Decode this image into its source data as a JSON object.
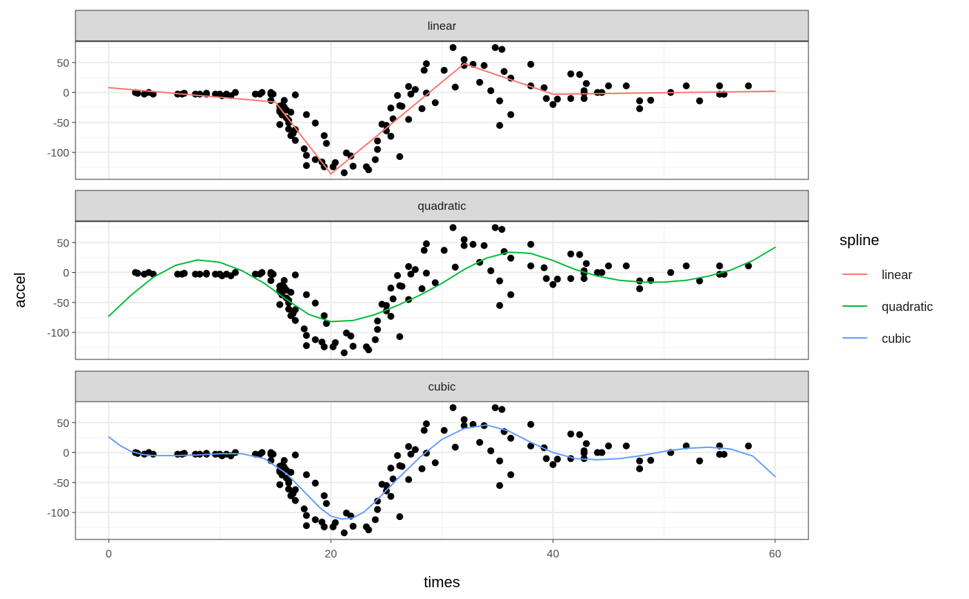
{
  "chart_data": {
    "type": "scatter",
    "xlabel": "times",
    "ylabel": "accel",
    "xlim": [
      -3,
      63
    ],
    "ylim": [
      -145,
      85
    ],
    "x_ticks": [
      0,
      20,
      40,
      60
    ],
    "y_ticks": [
      50,
      0,
      -50,
      -100
    ],
    "grid": true,
    "legend": {
      "title": "spline",
      "placement": "right",
      "entries": [
        {
          "label": "linear",
          "color": "#F8766D"
        },
        {
          "label": "quadratic",
          "color": "#00BA38"
        },
        {
          "label": "cubic",
          "color": "#619CFF"
        }
      ]
    },
    "panels": [
      {
        "strip": "linear",
        "color": "#F8766D",
        "fit": [
          [
            0,
            8
          ],
          [
            15,
            -16
          ],
          [
            20,
            -136
          ],
          [
            32,
            48
          ],
          [
            40,
            -3
          ],
          [
            60,
            2
          ]
        ]
      },
      {
        "strip": "quadratic",
        "color": "#00BA38",
        "fit": [
          [
            0,
            -73
          ],
          [
            2,
            -38
          ],
          [
            4,
            -8
          ],
          [
            6,
            12
          ],
          [
            8,
            21
          ],
          [
            10,
            17
          ],
          [
            12,
            3
          ],
          [
            14,
            -18
          ],
          [
            16,
            -45
          ],
          [
            18,
            -70
          ],
          [
            20,
            -82
          ],
          [
            22,
            -80
          ],
          [
            24,
            -70
          ],
          [
            26,
            -55
          ],
          [
            28,
            -38
          ],
          [
            30,
            -18
          ],
          [
            32,
            5
          ],
          [
            34,
            24
          ],
          [
            36,
            34
          ],
          [
            38,
            32
          ],
          [
            40,
            20
          ],
          [
            42,
            5
          ],
          [
            44,
            -6
          ],
          [
            46,
            -13
          ],
          [
            48,
            -16
          ],
          [
            50,
            -16
          ],
          [
            52,
            -13
          ],
          [
            54,
            -6
          ],
          [
            56,
            4
          ],
          [
            58,
            20
          ],
          [
            60,
            42
          ]
        ]
      },
      {
        "strip": "cubic",
        "color": "#619CFF",
        "fit": [
          [
            0,
            26
          ],
          [
            1,
            12
          ],
          [
            2,
            2
          ],
          [
            3,
            -3
          ],
          [
            4,
            -5
          ],
          [
            6,
            -5
          ],
          [
            8,
            -4
          ],
          [
            10,
            -2
          ],
          [
            12,
            -2
          ],
          [
            14,
            -10
          ],
          [
            16,
            -35
          ],
          [
            18,
            -73
          ],
          [
            19,
            -92
          ],
          [
            20,
            -106
          ],
          [
            21,
            -111
          ],
          [
            22,
            -109
          ],
          [
            23,
            -99
          ],
          [
            24,
            -82
          ],
          [
            26,
            -44
          ],
          [
            28,
            -8
          ],
          [
            30,
            22
          ],
          [
            32,
            40
          ],
          [
            34,
            46
          ],
          [
            36,
            36
          ],
          [
            38,
            17
          ],
          [
            40,
            0
          ],
          [
            42,
            -10
          ],
          [
            44,
            -12
          ],
          [
            46,
            -10
          ],
          [
            48,
            -5
          ],
          [
            50,
            2
          ],
          [
            52,
            7
          ],
          [
            54,
            9
          ],
          [
            56,
            6
          ],
          [
            58,
            -6
          ],
          [
            60,
            -40
          ]
        ]
      }
    ],
    "points": [
      [
        2.4,
        0
      ],
      [
        2.6,
        -1.3
      ],
      [
        3.2,
        -2.7
      ],
      [
        3.6,
        0
      ],
      [
        4,
        -2.7
      ],
      [
        6.2,
        -2.7
      ],
      [
        6.6,
        -2.7
      ],
      [
        6.8,
        -1.3
      ],
      [
        7.8,
        -2.7
      ],
      [
        8.2,
        -2.7
      ],
      [
        8.8,
        -1.3
      ],
      [
        8.8,
        -2.7
      ],
      [
        9.6,
        -2.7
      ],
      [
        10,
        -2.7
      ],
      [
        10.2,
        -5.4
      ],
      [
        10.6,
        -2.7
      ],
      [
        11,
        -5.4
      ],
      [
        11.4,
        0
      ],
      [
        13.2,
        -2.7
      ],
      [
        13.6,
        -2.7
      ],
      [
        13.8,
        0
      ],
      [
        14.6,
        -13.3
      ],
      [
        14.6,
        -2.7
      ],
      [
        14.6,
        0
      ],
      [
        14.6,
        -13.3
      ],
      [
        14.8,
        -2.7
      ],
      [
        15.4,
        -22.8
      ],
      [
        15.4,
        -29.4
      ],
      [
        15.4,
        -32.1
      ],
      [
        15.4,
        -53.5
      ],
      [
        15.6,
        -21.5
      ],
      [
        15.6,
        -37.5
      ],
      [
        15.8,
        -13.3
      ],
      [
        15.8,
        -24.2
      ],
      [
        16,
        -29.4
      ],
      [
        16,
        -42.5
      ],
      [
        16.2,
        -50.8
      ],
      [
        16.2,
        -61
      ],
      [
        16.2,
        -46.5
      ],
      [
        16.4,
        -72
      ],
      [
        16.4,
        -33
      ],
      [
        16.6,
        -68.5
      ],
      [
        16.8,
        -4
      ],
      [
        16.8,
        -80
      ],
      [
        16.8,
        -62
      ],
      [
        17.6,
        -94
      ],
      [
        17.8,
        -37
      ],
      [
        17.8,
        -105
      ],
      [
        17.8,
        -122
      ],
      [
        18.6,
        -51
      ],
      [
        18.6,
        -112
      ],
      [
        19.2,
        -116
      ],
      [
        19.4,
        -72
      ],
      [
        19.4,
        -124
      ],
      [
        19.6,
        -85
      ],
      [
        20.2,
        -124
      ],
      [
        20.4,
        -117
      ],
      [
        21.2,
        -134
      ],
      [
        21.4,
        -101
      ],
      [
        21.8,
        -106
      ],
      [
        22,
        -123
      ],
      [
        23.2,
        -124
      ],
      [
        23.4,
        -129
      ],
      [
        24,
        -112
      ],
      [
        24.2,
        -95
      ],
      [
        24.2,
        -81
      ],
      [
        24.6,
        -53
      ],
      [
        25,
        -55
      ],
      [
        25,
        -64
      ],
      [
        25.4,
        -73
      ],
      [
        25.4,
        -26
      ],
      [
        25.6,
        -44
      ],
      [
        26,
        -5
      ],
      [
        26.2,
        -107
      ],
      [
        26.2,
        -22
      ],
      [
        26.4,
        -23
      ],
      [
        27,
        -45
      ],
      [
        27,
        10
      ],
      [
        27.2,
        -2.7
      ],
      [
        27.6,
        5
      ],
      [
        28.2,
        -27
      ],
      [
        28.4,
        37
      ],
      [
        28.6,
        48
      ],
      [
        28.6,
        -1
      ],
      [
        29.4,
        -17
      ],
      [
        30.2,
        37
      ],
      [
        31,
        75
      ],
      [
        31.2,
        9
      ],
      [
        32,
        55
      ],
      [
        32,
        45
      ],
      [
        32.8,
        47
      ],
      [
        33.4,
        17
      ],
      [
        33.8,
        45
      ],
      [
        34.4,
        3
      ],
      [
        34.8,
        75
      ],
      [
        35.2,
        -55
      ],
      [
        35.2,
        -14
      ],
      [
        35.4,
        72
      ],
      [
        35.6,
        35
      ],
      [
        36.2,
        -37
      ],
      [
        36.2,
        24
      ],
      [
        38,
        47
      ],
      [
        38,
        11
      ],
      [
        39.2,
        8
      ],
      [
        39.4,
        -10
      ],
      [
        40,
        -20
      ],
      [
        40.4,
        -11
      ],
      [
        41.6,
        -10
      ],
      [
        41.6,
        31
      ],
      [
        42.4,
        30
      ],
      [
        42.8,
        -1
      ],
      [
        42.8,
        -10
      ],
      [
        42.8,
        3
      ],
      [
        43,
        15
      ],
      [
        44,
        0
      ],
      [
        44.4,
        0
      ],
      [
        45,
        11
      ],
      [
        46.6,
        11
      ],
      [
        47.8,
        -14
      ],
      [
        47.8,
        -27
      ],
      [
        48.8,
        -13
      ],
      [
        50.6,
        0
      ],
      [
        52,
        11
      ],
      [
        53.2,
        -14
      ],
      [
        55,
        11
      ],
      [
        55,
        -3
      ],
      [
        55.4,
        -3
      ],
      [
        57.6,
        11
      ]
    ]
  }
}
